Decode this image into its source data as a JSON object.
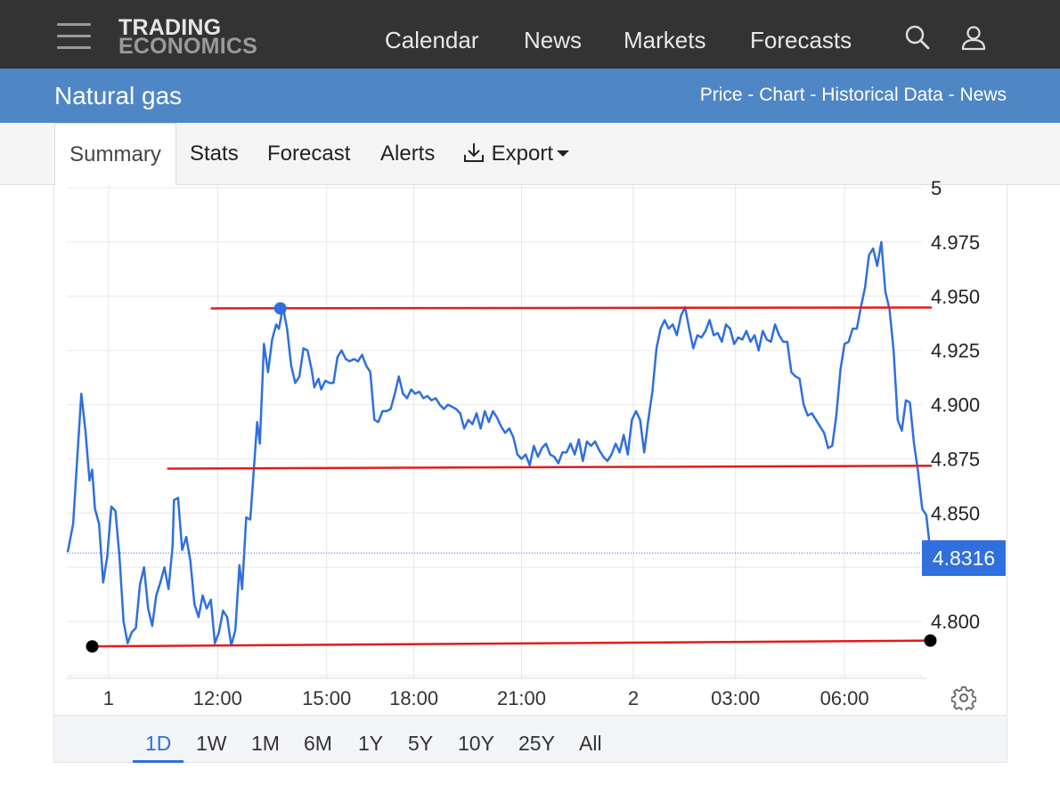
{
  "navbar": {
    "logo_line1": "TRADING",
    "logo_line2": "ECONOMICS",
    "links": [
      "Calendar",
      "News",
      "Markets",
      "Forecasts"
    ],
    "icons": [
      "menu-icon",
      "search-icon",
      "user-icon"
    ]
  },
  "titlebar": {
    "title": "Natural gas",
    "sublinks": [
      "Price",
      "Chart",
      "Historical Data",
      "News"
    ],
    "separator": " - "
  },
  "tabs": {
    "items": [
      "Summary",
      "Stats",
      "Forecast",
      "Alerts",
      "Export"
    ],
    "active": "Summary",
    "export_icon": "download-icon"
  },
  "chart": {
    "last_price_label": "4.8316",
    "settings_icon": "gear-icon",
    "ranges": [
      "1D",
      "1W",
      "1M",
      "6M",
      "1Y",
      "5Y",
      "10Y",
      "25Y",
      "All"
    ],
    "active_range": "1D",
    "colors": {
      "line": "#2f6fde",
      "support_lines": "#e31b1b",
      "grid": "#e8e8e8",
      "price_badge": "#2f6fde"
    }
  },
  "chart_data": {
    "type": "line",
    "series": [
      {
        "values": [
          [
            0.0,
            4.832
          ],
          [
            0.4,
            4.845
          ],
          [
            0.8,
            4.885
          ],
          [
            1.0,
            4.905
          ],
          [
            1.3,
            4.888
          ],
          [
            1.6,
            4.865
          ],
          [
            1.8,
            4.87
          ],
          [
            2.0,
            4.852
          ],
          [
            2.3,
            4.845
          ],
          [
            2.6,
            4.818
          ],
          [
            2.9,
            4.83
          ],
          [
            3.2,
            4.853
          ],
          [
            3.5,
            4.851
          ],
          [
            3.8,
            4.83
          ],
          [
            4.1,
            4.8
          ],
          [
            4.4,
            4.79
          ],
          [
            4.7,
            4.795
          ],
          [
            5.0,
            4.797
          ],
          [
            5.3,
            4.817
          ],
          [
            5.6,
            4.825
          ],
          [
            5.9,
            4.806
          ],
          [
            6.2,
            4.798
          ],
          [
            6.5,
            4.812
          ],
          [
            6.8,
            4.818
          ],
          [
            7.1,
            4.825
          ],
          [
            7.4,
            4.815
          ],
          [
            7.7,
            4.835
          ],
          [
            7.8,
            4.856
          ],
          [
            8.1,
            4.857
          ],
          [
            8.4,
            4.833
          ],
          [
            8.7,
            4.839
          ],
          [
            9.0,
            4.828
          ],
          [
            9.3,
            4.808
          ],
          [
            9.6,
            4.802
          ],
          [
            9.9,
            4.812
          ],
          [
            10.2,
            4.806
          ],
          [
            10.5,
            4.81
          ],
          [
            10.8,
            4.79
          ],
          [
            11.1,
            4.795
          ],
          [
            11.4,
            4.805
          ],
          [
            11.7,
            4.802
          ],
          [
            12.0,
            4.789
          ],
          [
            12.3,
            4.796
          ],
          [
            12.6,
            4.826
          ],
          [
            12.8,
            4.815
          ],
          [
            13.1,
            4.848
          ],
          [
            13.4,
            4.847
          ],
          [
            13.6,
            4.865
          ],
          [
            13.9,
            4.892
          ],
          [
            14.1,
            4.882
          ],
          [
            14.4,
            4.928
          ],
          [
            14.7,
            4.915
          ],
          [
            15.0,
            4.93
          ],
          [
            15.3,
            4.937
          ],
          [
            15.5,
            4.935
          ],
          [
            15.8,
            4.945
          ],
          [
            16.1,
            4.935
          ],
          [
            16.4,
            4.918
          ],
          [
            16.7,
            4.91
          ],
          [
            17.0,
            4.913
          ],
          [
            17.3,
            4.926
          ],
          [
            17.6,
            4.925
          ],
          [
            17.9,
            4.916
          ],
          [
            18.1,
            4.908
          ],
          [
            18.4,
            4.912
          ],
          [
            18.6,
            4.907
          ],
          [
            18.9,
            4.911
          ],
          [
            19.2,
            4.91
          ],
          [
            19.5,
            4.91
          ],
          [
            19.8,
            4.922
          ],
          [
            20.1,
            4.925
          ],
          [
            20.4,
            4.921
          ],
          [
            20.7,
            4.92
          ],
          [
            21.0,
            4.921
          ],
          [
            21.3,
            4.92
          ],
          [
            21.6,
            4.923
          ],
          [
            21.9,
            4.918
          ],
          [
            22.2,
            4.915
          ],
          [
            22.5,
            4.893
          ],
          [
            22.8,
            4.892
          ],
          [
            23.1,
            4.897
          ],
          [
            23.4,
            4.897
          ],
          [
            23.7,
            4.898
          ],
          [
            24.0,
            4.905
          ],
          [
            24.3,
            4.913
          ],
          [
            24.6,
            4.905
          ],
          [
            24.9,
            4.903
          ],
          [
            25.2,
            4.907
          ],
          [
            25.5,
            4.905
          ],
          [
            25.8,
            4.906
          ],
          [
            26.1,
            4.903
          ],
          [
            26.4,
            4.904
          ],
          [
            26.7,
            4.902
          ],
          [
            27.0,
            4.903
          ],
          [
            27.3,
            4.9
          ],
          [
            27.6,
            4.898
          ],
          [
            27.9,
            4.9
          ],
          [
            28.2,
            4.899
          ],
          [
            28.5,
            4.898
          ],
          [
            28.8,
            4.896
          ],
          [
            29.1,
            4.889
          ],
          [
            29.4,
            4.893
          ],
          [
            29.7,
            4.891
          ],
          [
            30.0,
            4.896
          ],
          [
            30.3,
            4.889
          ],
          [
            30.6,
            4.897
          ],
          [
            30.9,
            4.892
          ],
          [
            31.2,
            4.897
          ],
          [
            31.5,
            4.894
          ],
          [
            31.8,
            4.89
          ],
          [
            32.1,
            4.887
          ],
          [
            32.4,
            4.889
          ],
          [
            32.7,
            4.885
          ],
          [
            33.0,
            4.877
          ],
          [
            33.3,
            4.875
          ],
          [
            33.6,
            4.877
          ],
          [
            33.9,
            4.872
          ],
          [
            34.2,
            4.881
          ],
          [
            34.5,
            4.876
          ],
          [
            34.8,
            4.88
          ],
          [
            35.1,
            4.882
          ],
          [
            35.4,
            4.877
          ],
          [
            35.7,
            4.876
          ],
          [
            36.0,
            4.873
          ],
          [
            36.3,
            4.878
          ],
          [
            36.6,
            4.878
          ],
          [
            36.9,
            4.882
          ],
          [
            37.2,
            4.877
          ],
          [
            37.5,
            4.884
          ],
          [
            37.8,
            4.874
          ],
          [
            38.1,
            4.883
          ],
          [
            38.4,
            4.881
          ],
          [
            38.7,
            4.883
          ],
          [
            39.0,
            4.879
          ],
          [
            39.3,
            4.876
          ],
          [
            39.6,
            4.874
          ],
          [
            39.9,
            4.877
          ],
          [
            40.2,
            4.882
          ],
          [
            40.5,
            4.878
          ],
          [
            40.8,
            4.886
          ],
          [
            41.1,
            4.877
          ],
          [
            41.4,
            4.893
          ],
          [
            41.7,
            4.897
          ],
          [
            42.0,
            4.893
          ],
          [
            42.3,
            4.878
          ],
          [
            42.6,
            4.893
          ],
          [
            42.9,
            4.906
          ],
          [
            43.2,
            4.926
          ],
          [
            43.5,
            4.935
          ],
          [
            43.8,
            4.939
          ],
          [
            44.1,
            4.935
          ],
          [
            44.4,
            4.937
          ],
          [
            44.7,
            4.932
          ],
          [
            45.0,
            4.941
          ],
          [
            45.3,
            4.945
          ],
          [
            45.6,
            4.935
          ],
          [
            45.9,
            4.926
          ],
          [
            46.2,
            4.932
          ],
          [
            46.5,
            4.931
          ],
          [
            46.8,
            4.934
          ],
          [
            47.1,
            4.939
          ],
          [
            47.4,
            4.932
          ],
          [
            47.7,
            4.933
          ],
          [
            48.0,
            4.929
          ],
          [
            48.3,
            4.937
          ],
          [
            48.6,
            4.935
          ],
          [
            48.9,
            4.928
          ],
          [
            49.2,
            4.931
          ],
          [
            49.5,
            4.93
          ],
          [
            49.8,
            4.934
          ],
          [
            50.1,
            4.929
          ],
          [
            50.4,
            4.932
          ],
          [
            50.7,
            4.925
          ],
          [
            51.0,
            4.934
          ],
          [
            51.3,
            4.93
          ],
          [
            51.6,
            4.929
          ],
          [
            51.9,
            4.937
          ],
          [
            52.2,
            4.932
          ],
          [
            52.5,
            4.929
          ],
          [
            52.8,
            4.929
          ],
          [
            53.1,
            4.915
          ],
          [
            53.4,
            4.913
          ],
          [
            53.7,
            4.912
          ],
          [
            54.0,
            4.9
          ],
          [
            54.3,
            4.895
          ],
          [
            54.6,
            4.896
          ],
          [
            54.9,
            4.893
          ],
          [
            55.2,
            4.89
          ],
          [
            55.5,
            4.887
          ],
          [
            55.8,
            4.88
          ],
          [
            56.1,
            4.881
          ],
          [
            56.4,
            4.895
          ],
          [
            56.7,
            4.916
          ],
          [
            57.0,
            4.928
          ],
          [
            57.3,
            4.929
          ],
          [
            57.6,
            4.935
          ],
          [
            57.9,
            4.935
          ],
          [
            58.2,
            4.945
          ],
          [
            58.5,
            4.954
          ],
          [
            58.8,
            4.969
          ],
          [
            59.1,
            4.972
          ],
          [
            59.4,
            4.964
          ],
          [
            59.7,
            4.975
          ],
          [
            60.0,
            4.952
          ],
          [
            60.3,
            4.944
          ],
          [
            60.6,
            4.925
          ],
          [
            60.9,
            4.893
          ],
          [
            61.2,
            4.888
          ],
          [
            61.5,
            4.902
          ],
          [
            61.8,
            4.901
          ],
          [
            62.1,
            4.882
          ],
          [
            62.4,
            4.869
          ],
          [
            62.7,
            4.852
          ],
          [
            63.0,
            4.849
          ],
          [
            63.3,
            4.832
          ]
        ]
      }
    ],
    "x_tick_labels": [
      "1",
      "12:00",
      "15:00",
      "18:00",
      "21:00",
      "2",
      "03:00",
      "06:00"
    ],
    "y_tick_labels": [
      "5",
      "4.975",
      "4.950",
      "4.925",
      "4.900",
      "4.875",
      "4.850",
      "4.800"
    ],
    "ylim": [
      4.776,
      5.0
    ],
    "last_value": 4.8316,
    "annotations": [
      {
        "type": "trendline",
        "from": [
          10.5,
          4.9444
        ],
        "to": [
          63.4,
          4.9448
        ]
      },
      {
        "type": "trendline",
        "from": [
          7.3,
          4.8705
        ],
        "to": [
          63.4,
          4.8718
        ]
      },
      {
        "type": "trendline",
        "from": [
          1.8,
          4.7885
        ],
        "to": [
          63.3,
          4.7912
        ]
      },
      {
        "type": "marker",
        "at": [
          15.6,
          4.9444
        ],
        "color": "#2f6fde"
      },
      {
        "type": "marker",
        "at": [
          1.8,
          4.7885
        ],
        "color": "#000000"
      },
      {
        "type": "marker",
        "at": [
          63.3,
          4.7912
        ],
        "color": "#000000"
      }
    ],
    "grid": true
  }
}
